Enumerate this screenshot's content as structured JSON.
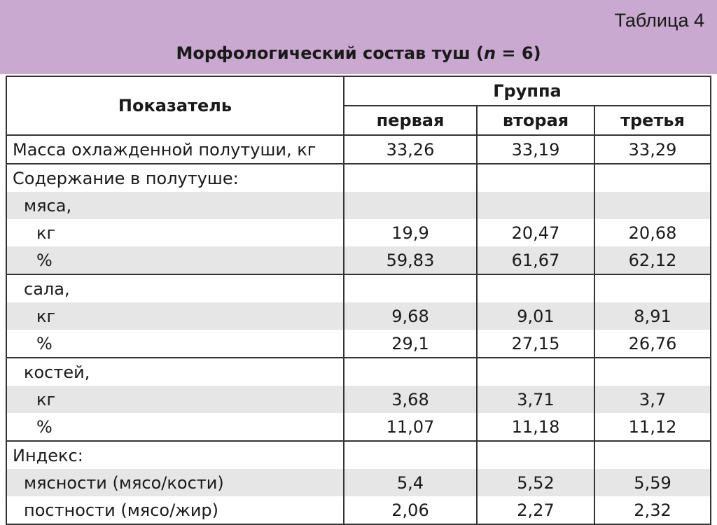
{
  "header": {
    "table_label": "Таблица 4",
    "title": [
      "Морфологический состав туш (",
      "n",
      " = 6)"
    ]
  },
  "table": {
    "indicator": "Показатель",
    "group": "Группа",
    "groups": [
      "первая",
      "вторая",
      "третья"
    ],
    "rows": [
      [
        "Масса охлажденной полутуши, кг",
        "33,26",
        "33,19",
        "33,29"
      ],
      [
        "Содержание в полутуше:"
      ],
      [
        "мяса,"
      ],
      [
        "кг",
        "19,9",
        "20,47",
        "20,68"
      ],
      [
        "%",
        "59,83",
        "61,67",
        "62,12"
      ],
      [
        "сала,"
      ],
      [
        "кг",
        "9,68",
        "9,01",
        "8,91"
      ],
      [
        "%",
        "29,1",
        "27,15",
        "26,76"
      ],
      [
        "костей,"
      ],
      [
        "кг",
        "3,68",
        "3,71",
        "3,7"
      ],
      [
        "%",
        "11,07",
        "11,18",
        "11,12"
      ],
      [
        "Индекс:"
      ],
      [
        "мясности (мясо/кости)",
        "5,4",
        "5,52",
        "5,59"
      ],
      [
        "постности (мясо/жир)",
        "2,06",
        "2,27",
        "2,32"
      ]
    ]
  }
}
